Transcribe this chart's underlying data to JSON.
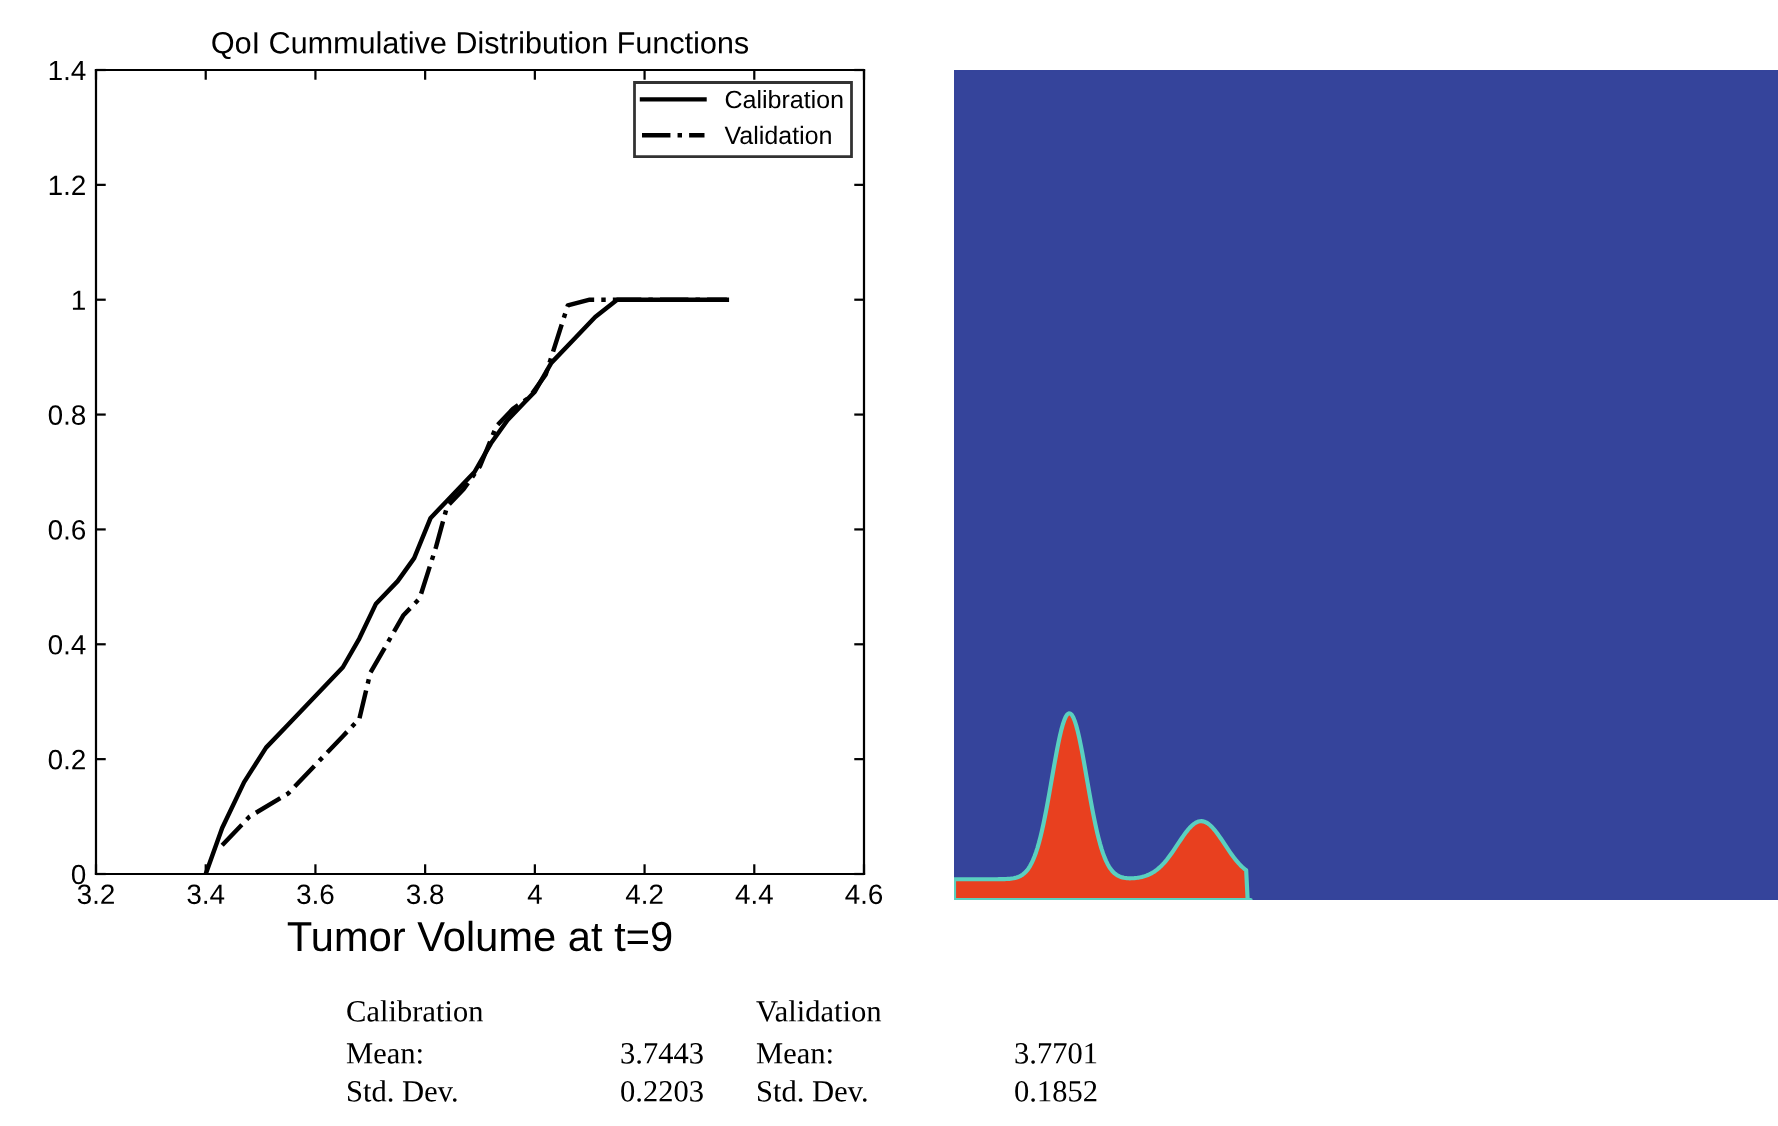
{
  "chart_data": {
    "type": "line",
    "title": "QoI Cummulative Distribution Functions",
    "xlabel": "Tumor Volume at t=9",
    "xlim": [
      3.2,
      4.6
    ],
    "xticks": [
      3.2,
      3.4,
      3.6,
      3.8,
      4,
      4.2,
      4.4,
      4.6
    ],
    "ylim": [
      0,
      1.4
    ],
    "yticks": [
      0,
      0.2,
      0.4,
      0.6,
      0.8,
      1,
      1.2,
      1.4
    ],
    "grid": false,
    "legend": "top right",
    "series": [
      {
        "name": "Calibration",
        "color": "#000000",
        "line_style": "solid",
        "x": [
          3.4,
          3.43,
          3.47,
          3.51,
          3.55,
          3.6,
          3.65,
          3.68,
          3.71,
          3.75,
          3.78,
          3.81,
          3.84,
          3.87,
          3.89,
          3.92,
          3.95,
          3.98,
          4.0,
          4.03,
          4.07,
          4.11,
          4.15,
          4.25,
          4.35
        ],
        "values": [
          0,
          0.08,
          0.16,
          0.22,
          0.26,
          0.31,
          0.36,
          0.41,
          0.47,
          0.51,
          0.55,
          0.62,
          0.65,
          0.68,
          0.7,
          0.75,
          0.79,
          0.82,
          0.84,
          0.89,
          0.93,
          0.97,
          1.0,
          1.0,
          1.0
        ]
      },
      {
        "name": "Validation",
        "color": "#000000",
        "line_style": "dashdot",
        "x": [
          3.43,
          3.48,
          3.55,
          3.6,
          3.65,
          3.68,
          3.7,
          3.73,
          3.76,
          3.79,
          3.82,
          3.84,
          3.87,
          3.9,
          3.93,
          3.96,
          3.99,
          4.02,
          4.06,
          4.1,
          4.35
        ],
        "values": [
          0.05,
          0.1,
          0.14,
          0.19,
          0.24,
          0.27,
          0.35,
          0.4,
          0.45,
          0.48,
          0.57,
          0.64,
          0.67,
          0.71,
          0.78,
          0.81,
          0.83,
          0.87,
          0.99,
          1.0,
          1.0
        ]
      }
    ],
    "annotations": [
      "Calibration",
      "Validation",
      "Mean:",
      "3.7443",
      "Mean:",
      "3.7701",
      "Std. Dev.",
      "0.2203",
      "Std. Dev.",
      "0.1852"
    ]
  }
}
